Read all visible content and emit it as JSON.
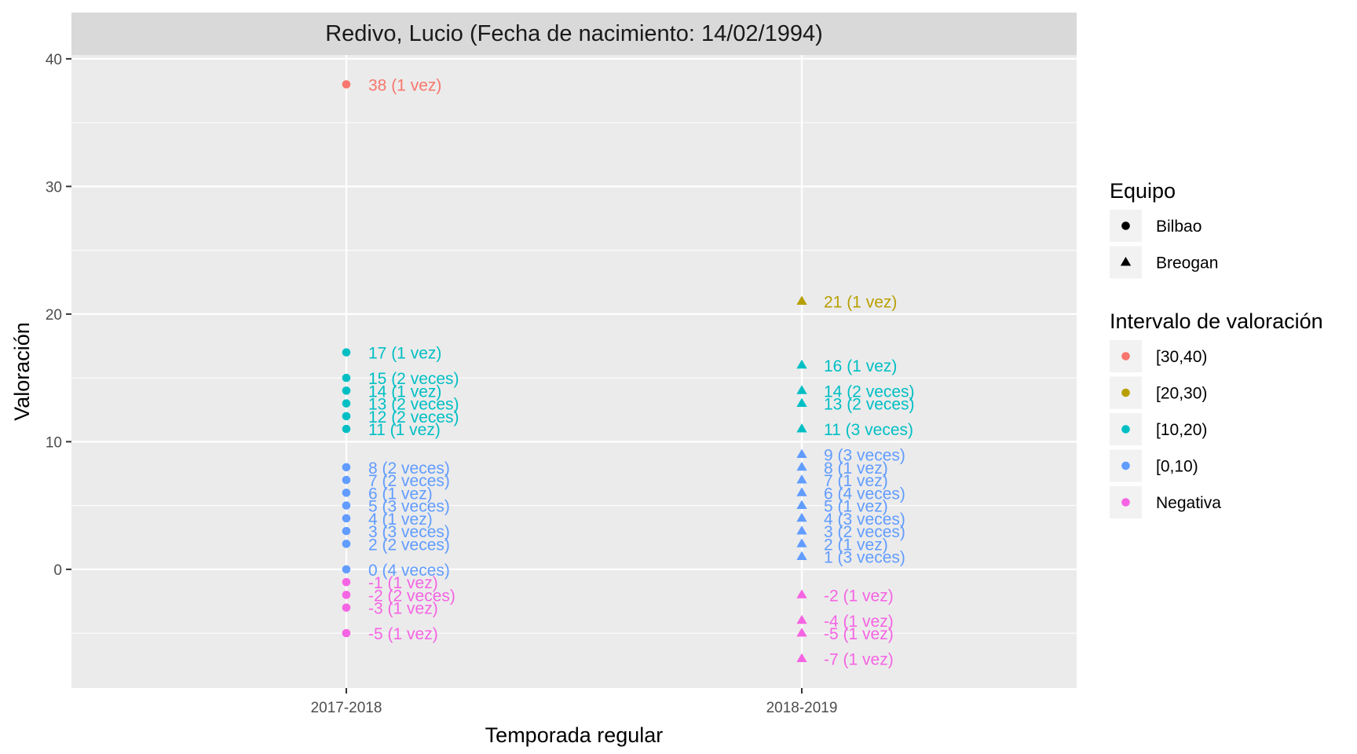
{
  "chart_data": {
    "type": "scatter",
    "title": "Redivo, Lucio (Fecha de nacimiento: 14/02/1994)",
    "xlabel": "Temporada regular",
    "ylabel": "Valoración",
    "categories": [
      "2017-2018",
      "2018-2019"
    ],
    "ylim": [
      -9.3,
      40.3
    ],
    "yticks": [
      0,
      10,
      20,
      30,
      40
    ],
    "grid": true,
    "legend_position": "right",
    "legends": [
      {
        "title": "Equipo",
        "entries": [
          {
            "label": "Bilbao",
            "shape": "circle"
          },
          {
            "label": "Breogan",
            "shape": "triangle"
          }
        ]
      },
      {
        "title": "Intervalo de valoración",
        "entries": [
          {
            "label": "[30,40)",
            "color": "#F8766D"
          },
          {
            "label": "[20,30)",
            "color": "#B79F00"
          },
          {
            "label": "[10,20)",
            "color": "#00BFC4"
          },
          {
            "label": "[0,10)",
            "color": "#619CFF"
          },
          {
            "label": "Negativa",
            "color": "#F564E3"
          }
        ]
      }
    ],
    "points": [
      {
        "x": "2017-2018",
        "y": 38,
        "team": "Bilbao",
        "interval": "[30,40)",
        "label": "38 (1 vez)"
      },
      {
        "x": "2017-2018",
        "y": 17,
        "team": "Bilbao",
        "interval": "[10,20)",
        "label": "17 (1 vez)"
      },
      {
        "x": "2017-2018",
        "y": 15,
        "team": "Bilbao",
        "interval": "[10,20)",
        "label": "15 (2 veces)"
      },
      {
        "x": "2017-2018",
        "y": 14,
        "team": "Bilbao",
        "interval": "[10,20)",
        "label": "14 (1 vez)"
      },
      {
        "x": "2017-2018",
        "y": 13,
        "team": "Bilbao",
        "interval": "[10,20)",
        "label": "13 (2 veces)"
      },
      {
        "x": "2017-2018",
        "y": 12,
        "team": "Bilbao",
        "interval": "[10,20)",
        "label": "12 (2 veces)"
      },
      {
        "x": "2017-2018",
        "y": 11,
        "team": "Bilbao",
        "interval": "[10,20)",
        "label": "11 (1 vez)"
      },
      {
        "x": "2017-2018",
        "y": 8,
        "team": "Bilbao",
        "interval": "[0,10)",
        "label": "8 (2 veces)"
      },
      {
        "x": "2017-2018",
        "y": 7,
        "team": "Bilbao",
        "interval": "[0,10)",
        "label": "7 (2 veces)"
      },
      {
        "x": "2017-2018",
        "y": 6,
        "team": "Bilbao",
        "interval": "[0,10)",
        "label": "6 (1 vez)"
      },
      {
        "x": "2017-2018",
        "y": 5,
        "team": "Bilbao",
        "interval": "[0,10)",
        "label": "5 (3 veces)"
      },
      {
        "x": "2017-2018",
        "y": 4,
        "team": "Bilbao",
        "interval": "[0,10)",
        "label": "4 (1 vez)"
      },
      {
        "x": "2017-2018",
        "y": 3,
        "team": "Bilbao",
        "interval": "[0,10)",
        "label": "3 (3 veces)"
      },
      {
        "x": "2017-2018",
        "y": 2,
        "team": "Bilbao",
        "interval": "[0,10)",
        "label": "2 (2 veces)"
      },
      {
        "x": "2017-2018",
        "y": 0,
        "team": "Bilbao",
        "interval": "[0,10)",
        "label": "0 (4 veces)"
      },
      {
        "x": "2017-2018",
        "y": -1,
        "team": "Bilbao",
        "interval": "Negativa",
        "label": "-1 (1 vez)"
      },
      {
        "x": "2017-2018",
        "y": -2,
        "team": "Bilbao",
        "interval": "Negativa",
        "label": "-2 (2 veces)"
      },
      {
        "x": "2017-2018",
        "y": -3,
        "team": "Bilbao",
        "interval": "Negativa",
        "label": "-3 (1 vez)"
      },
      {
        "x": "2017-2018",
        "y": -5,
        "team": "Bilbao",
        "interval": "Negativa",
        "label": "-5 (1 vez)"
      },
      {
        "x": "2018-2019",
        "y": 21,
        "team": "Breogan",
        "interval": "[20,30)",
        "label": "21 (1 vez)"
      },
      {
        "x": "2018-2019",
        "y": 16,
        "team": "Breogan",
        "interval": "[10,20)",
        "label": "16 (1 vez)"
      },
      {
        "x": "2018-2019",
        "y": 14,
        "team": "Breogan",
        "interval": "[10,20)",
        "label": "14 (2 veces)"
      },
      {
        "x": "2018-2019",
        "y": 13,
        "team": "Breogan",
        "interval": "[10,20)",
        "label": "13 (2 veces)"
      },
      {
        "x": "2018-2019",
        "y": 11,
        "team": "Breogan",
        "interval": "[10,20)",
        "label": "11 (3 veces)"
      },
      {
        "x": "2018-2019",
        "y": 9,
        "team": "Breogan",
        "interval": "[0,10)",
        "label": "9 (3 veces)"
      },
      {
        "x": "2018-2019",
        "y": 8,
        "team": "Breogan",
        "interval": "[0,10)",
        "label": "8 (1 vez)"
      },
      {
        "x": "2018-2019",
        "y": 7,
        "team": "Breogan",
        "interval": "[0,10)",
        "label": "7 (1 vez)"
      },
      {
        "x": "2018-2019",
        "y": 6,
        "team": "Breogan",
        "interval": "[0,10)",
        "label": "6 (4 veces)"
      },
      {
        "x": "2018-2019",
        "y": 5,
        "team": "Breogan",
        "interval": "[0,10)",
        "label": "5 (1 vez)"
      },
      {
        "x": "2018-2019",
        "y": 4,
        "team": "Breogan",
        "interval": "[0,10)",
        "label": "4 (3 veces)"
      },
      {
        "x": "2018-2019",
        "y": 3,
        "team": "Breogan",
        "interval": "[0,10)",
        "label": "3 (2 veces)"
      },
      {
        "x": "2018-2019",
        "y": 2,
        "team": "Breogan",
        "interval": "[0,10)",
        "label": "2 (1 vez)"
      },
      {
        "x": "2018-2019",
        "y": 1,
        "team": "Breogan",
        "interval": "[0,10)",
        "label": "1 (3 veces)"
      },
      {
        "x": "2018-2019",
        "y": -2,
        "team": "Breogan",
        "interval": "Negativa",
        "label": "-2 (1 vez)"
      },
      {
        "x": "2018-2019",
        "y": -4,
        "team": "Breogan",
        "interval": "Negativa",
        "label": "-4 (1 vez)"
      },
      {
        "x": "2018-2019",
        "y": -5,
        "team": "Breogan",
        "interval": "Negativa",
        "label": "-5 (1 vez)"
      },
      {
        "x": "2018-2019",
        "y": -7,
        "team": "Breogan",
        "interval": "Negativa",
        "label": "-7 (1 vez)"
      }
    ]
  }
}
